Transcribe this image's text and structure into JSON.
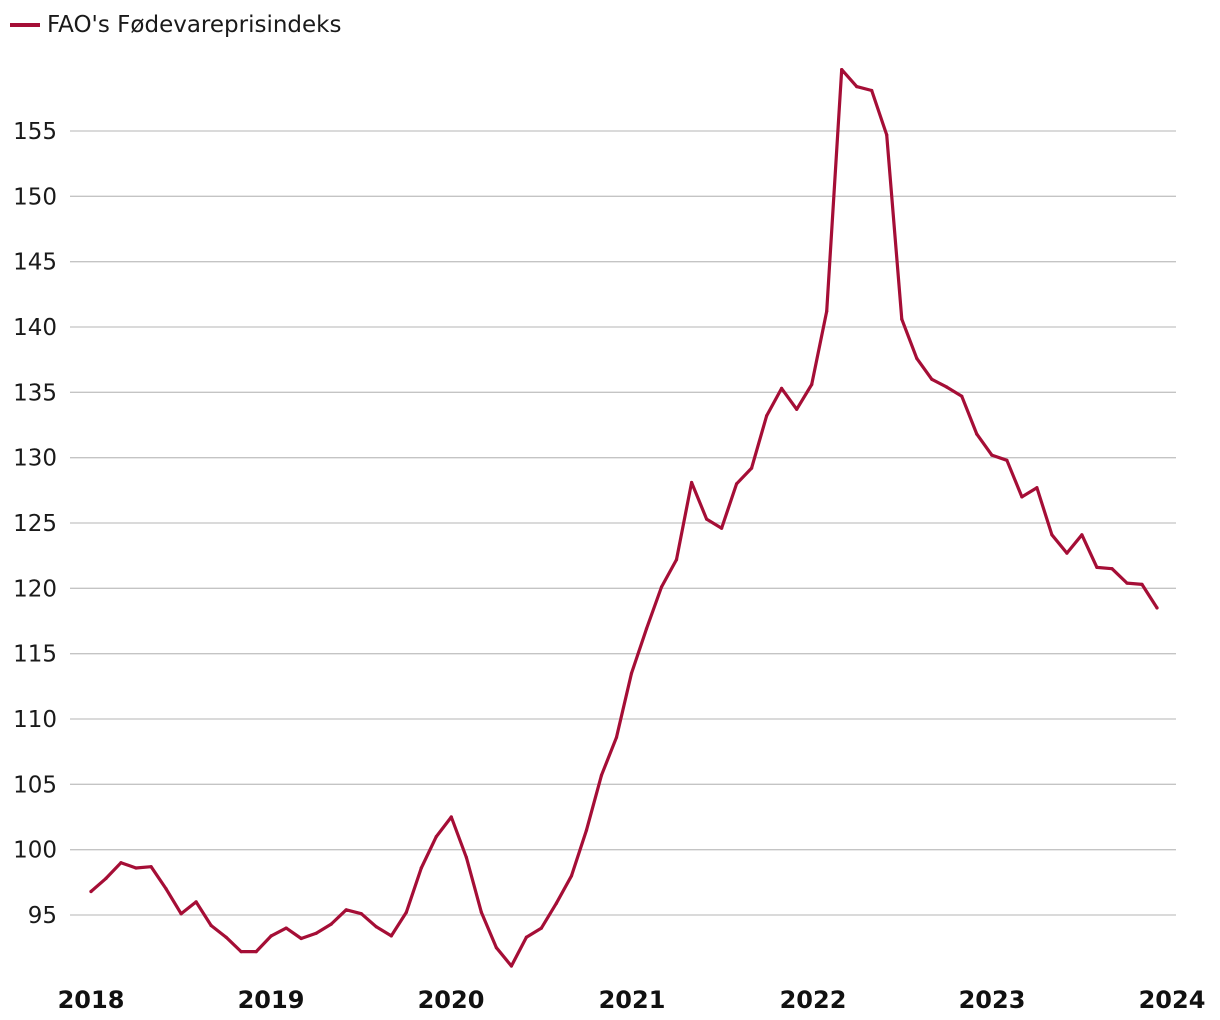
{
  "chart_data": {
    "type": "line",
    "title": "",
    "xlabel": "",
    "ylabel": "",
    "legend": {
      "position": "top-left"
    },
    "x_ticks": [
      "2018",
      "2019",
      "2020",
      "2021",
      "2022",
      "2023",
      "2024"
    ],
    "y_ticks": [
      95,
      100,
      105,
      110,
      115,
      120,
      125,
      130,
      135,
      140,
      145,
      150,
      155
    ],
    "ylim": [
      91,
      160
    ],
    "grid": true,
    "colors": {
      "series": "#a50e36",
      "grid": "#c4c4c4"
    },
    "series": [
      {
        "name": "FAO's Fødevareprisindeks",
        "start": "2018-01",
        "frequency": "monthly",
        "values": [
          96.8,
          97.8,
          99.0,
          98.6,
          98.7,
          97.0,
          95.1,
          96.0,
          94.2,
          93.3,
          92.2,
          92.2,
          93.4,
          94.0,
          93.2,
          93.6,
          94.3,
          95.4,
          95.1,
          94.1,
          93.4,
          95.2,
          98.6,
          101.0,
          102.5,
          99.4,
          95.2,
          92.5,
          91.1,
          93.3,
          94.0,
          95.9,
          98.0,
          101.5,
          105.7,
          108.6,
          113.5,
          116.9,
          120.1,
          122.2,
          128.1,
          125.3,
          124.6,
          128.0,
          129.2,
          133.2,
          135.3,
          133.7,
          135.6,
          141.2,
          159.7,
          158.4,
          158.1,
          154.7,
          140.6,
          137.6,
          136.0,
          135.4,
          134.7,
          131.8,
          130.2,
          129.8,
          127.0,
          127.7,
          124.1,
          122.7,
          124.1,
          121.6,
          121.5,
          120.4,
          120.3,
          118.5
        ]
      }
    ]
  }
}
